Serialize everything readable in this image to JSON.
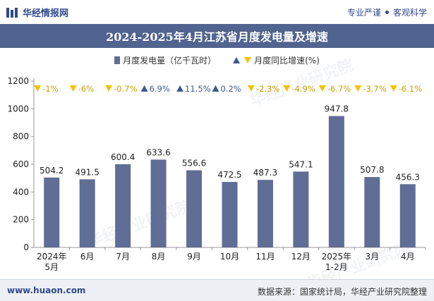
{
  "header": {
    "brand_name": "华经情报网",
    "tagline_left": "专业严谨",
    "tagline_right": "客观科学"
  },
  "watermark_text": "华经产业研究院",
  "footer": {
    "url": "www.huaon.com",
    "source": "数据来源：国家统计局，华经产业研究院整理"
  },
  "colors": {
    "bar": "#606e96",
    "up": "#3b5a8f",
    "down": "#f2c200",
    "title_bg": "#51648f"
  },
  "chart_data": {
    "type": "bar",
    "title": "2024-2025年4月江苏省月度发电量及增速",
    "legend": {
      "bar_label": "月度发电量（亿千瓦时）",
      "growth_label": "月度同比增速(%)",
      "position": "top-center"
    },
    "categories": [
      "2024年\n5月",
      "6月",
      "7月",
      "8月",
      "9月",
      "10月",
      "11月",
      "12月",
      "2025年\n1-2月",
      "3月",
      "4月"
    ],
    "series": [
      {
        "name": "月度发电量（亿千瓦时）",
        "values": [
          504.2,
          491.5,
          600.4,
          633.6,
          556.6,
          472.5,
          487.3,
          547.1,
          947.8,
          507.8,
          456.3
        ]
      },
      {
        "name": "月度同比增速(%)",
        "values": [
          -1,
          -6,
          -0.7,
          6.9,
          11.5,
          0.2,
          -2.3,
          -4.9,
          -6.7,
          -3.7,
          -6.1
        ],
        "labels": [
          "-1%",
          "-6%",
          "-0.7%",
          "6.9%",
          "11.5%",
          "0.2%",
          "-2.3%",
          "-4.9%",
          "-6.7%",
          "-3.7%",
          "-6.1%"
        ]
      }
    ],
    "ylim": [
      0,
      1200
    ],
    "yticks": [
      0,
      200,
      400,
      600,
      800,
      1000,
      1200
    ],
    "grid": false
  }
}
